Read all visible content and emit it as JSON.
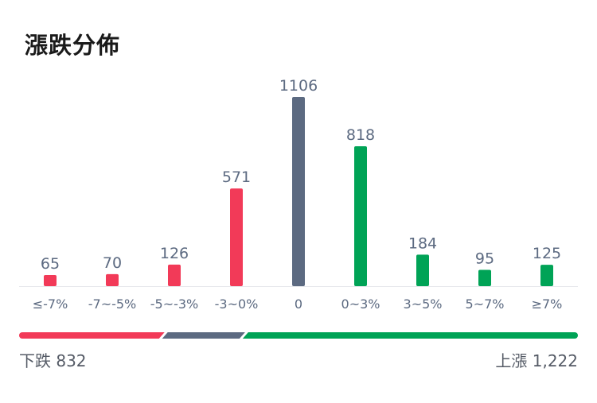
{
  "title": "漲跌分佈",
  "colors": {
    "down": "#f23a58",
    "flat": "#5c6a81",
    "up": "#00a356",
    "value_text": "#5c6a81",
    "tick_text": "#5c6a81",
    "baseline": "#e6e8ec"
  },
  "chart_data": {
    "type": "bar",
    "title": "漲跌分佈",
    "categories": [
      "≤-7%",
      "-7~-5%",
      "-5~-3%",
      "-3~0%",
      "0",
      "0~3%",
      "3~5%",
      "5~7%",
      "≥7%"
    ],
    "values": [
      65,
      70,
      126,
      571,
      1106,
      818,
      184,
      95,
      125
    ],
    "bar_groups": [
      "down",
      "down",
      "down",
      "down",
      "flat",
      "up",
      "up",
      "up",
      "up"
    ],
    "ylim": [
      0,
      1106
    ]
  },
  "summary": {
    "down_label": "下跌 832",
    "up_label": "上漲 1,222",
    "down_count": 832,
    "flat_count": 1106,
    "up_count": 1222
  }
}
